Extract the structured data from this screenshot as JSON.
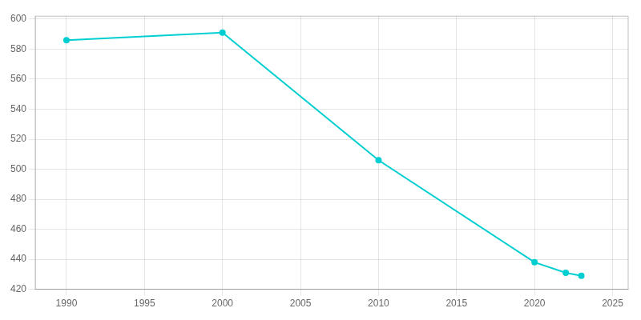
{
  "chart_data": {
    "type": "line",
    "x": [
      1990,
      2000,
      2010,
      2020,
      2022,
      2023
    ],
    "values": [
      586,
      591,
      506,
      438,
      431,
      429
    ],
    "color": "#00CED1",
    "marker": "circle",
    "xlim": [
      1988,
      2026
    ],
    "ylim": [
      420,
      602
    ],
    "xticks": [
      1990,
      1995,
      2000,
      2005,
      2010,
      2015,
      2020,
      2025
    ],
    "yticks": [
      420,
      440,
      460,
      480,
      500,
      520,
      540,
      560,
      580,
      600
    ],
    "grid": true
  }
}
